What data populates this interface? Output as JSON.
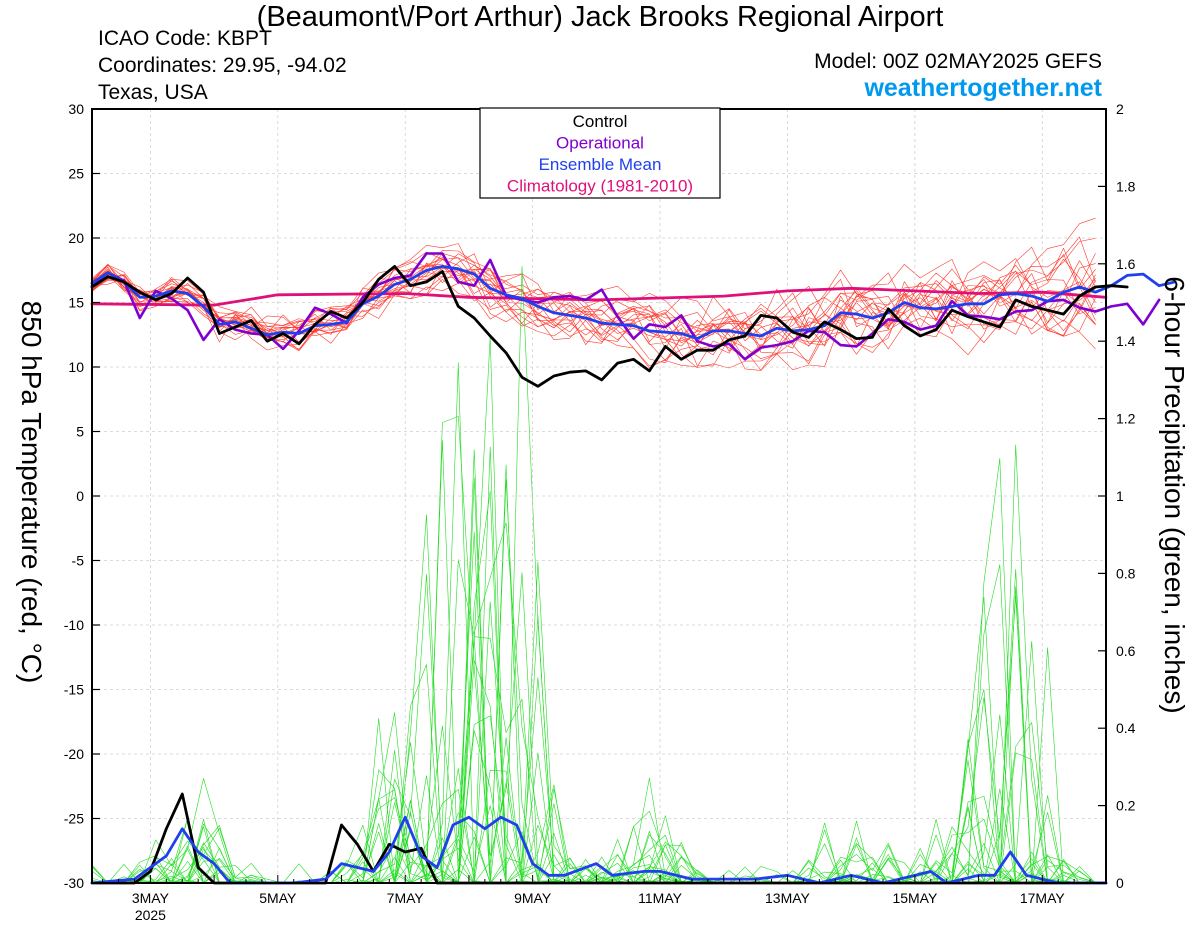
{
  "header": {
    "title": "(Beaumont\\/Port Arthur) Jack Brooks Regional Airport",
    "icao": "ICAO Code: KBPT",
    "coords": "Coordinates: 29.95, -94.02",
    "region": "Texas, USA",
    "model": "Model: 00Z 02MAY2025 GEFS",
    "site": "weathertogether.net"
  },
  "chart_data": {
    "type": "line",
    "ylabel_left": "850 hPa Temperature (red, °C)",
    "ylabel_right": "6-hour Precipitation (green, inches)",
    "left_axis": {
      "min": -30,
      "max": 30,
      "ticks": [
        30,
        25,
        20,
        15,
        10,
        5,
        0,
        -5,
        -10,
        -15,
        -20,
        -25,
        -30
      ]
    },
    "right_axis": {
      "min": 0,
      "max": 2,
      "ticks": [
        2,
        1.8,
        1.6,
        1.4,
        1.2,
        1,
        0.8,
        0.6,
        0.4,
        0.2,
        0
      ]
    },
    "x_axis": {
      "start_day": 2.0833,
      "end_day": 18.0,
      "ticks": [
        {
          "day": 3,
          "label": "3MAY",
          "sub": "2025"
        },
        {
          "day": 5,
          "label": "5MAY",
          "sub": ""
        },
        {
          "day": 7,
          "label": "7MAY",
          "sub": ""
        },
        {
          "day": 9,
          "label": "9MAY",
          "sub": ""
        },
        {
          "day": 11,
          "label": "11MAY",
          "sub": ""
        },
        {
          "day": 13,
          "label": "13MAY",
          "sub": ""
        },
        {
          "day": 15,
          "label": "15MAY",
          "sub": ""
        },
        {
          "day": 17,
          "label": "17MAY",
          "sub": ""
        }
      ]
    },
    "legend": {
      "position": "top-center",
      "items": [
        {
          "label": "Control",
          "color": "#000000"
        },
        {
          "label": "Operational",
          "color": "#8000d0"
        },
        {
          "label": "Ensemble Mean",
          "color": "#2040ee"
        },
        {
          "label": "Climatology (1981-2010)",
          "color": "#e0107a"
        }
      ]
    },
    "temperature": {
      "step_days": 0.25,
      "control": [
        16.2,
        17,
        16.6,
        15.8,
        15.2,
        15.7,
        16.9,
        15.8,
        12.6,
        13.1,
        13.6,
        12,
        12.6,
        11.8,
        13.3,
        14.3,
        13.8,
        15,
        16.8,
        17.8,
        16.3,
        16.6,
        17.4,
        14.7,
        13.8,
        12.4,
        11.1,
        9.2,
        8.5,
        9.3,
        9.6,
        9.7,
        9,
        10.3,
        10.6,
        9.7,
        11.6,
        10.6,
        11.3,
        11.3,
        12.1,
        12.4,
        14,
        13.8,
        12.7,
        12.3,
        13.5,
        12.9,
        12.2,
        12.3,
        14.5,
        13.2,
        12.4,
        12.9,
        14.4,
        13.9,
        13.5,
        13.1,
        15.2,
        14.7,
        14.4,
        14.1,
        15.5,
        16.2,
        16.3,
        16.2
      ],
      "operational": [
        16.3,
        17.3,
        16.7,
        13.8,
        15.9,
        15.3,
        14.4,
        12.1,
        13.7,
        12.9,
        12.6,
        12.5,
        11.4,
        12.8,
        14.6,
        14.1,
        13.4,
        15.4,
        16.4,
        16.9,
        17.1,
        18.8,
        18.8,
        16.6,
        16.3,
        18.3,
        15.5,
        15.2,
        15,
        15.4,
        15.5,
        15.2,
        16,
        13.9,
        12.2,
        13.3,
        13.1,
        14,
        12,
        11.6,
        11.8,
        10.6,
        11.5,
        11.7,
        12,
        12.8,
        12.7,
        11.7,
        11.6,
        12.6,
        13.7,
        13.5,
        12.9,
        13.2,
        15.1,
        14,
        13.9,
        13.7,
        14.3,
        14.4,
        15.1,
        15.2,
        14.6,
        14.3,
        14.7,
        14.9,
        13.3,
        15.2
      ],
      "ensemble_mean": [
        16.5,
        17.3,
        16.6,
        15.4,
        15.5,
        15.9,
        15.7,
        14.7,
        13.3,
        13.5,
        13,
        12.5,
        12.7,
        12.6,
        13.2,
        13.3,
        13.5,
        14.9,
        15.5,
        16.4,
        16.8,
        17.5,
        17.8,
        17.6,
        17.2,
        16.1,
        15.6,
        15.3,
        14.7,
        14.2,
        14,
        13.8,
        13.4,
        13.3,
        13.2,
        12.8,
        12.7,
        12.6,
        12.2,
        12.8,
        12.8,
        12.6,
        12.4,
        13,
        12.8,
        12.9,
        13.2,
        14.2,
        14.1,
        13.8,
        14.2,
        15,
        14.6,
        14.5,
        14.7,
        14.9,
        14.9,
        15.6,
        15.7,
        15.5,
        15.1,
        15.8,
        16.2,
        15.8,
        16.3,
        17.1,
        17.2,
        16.3,
        16.6
      ]
    },
    "climatology": [
      {
        "day": 2.0833,
        "t": 14.9
      },
      {
        "day": 4.0,
        "t": 14.8
      },
      {
        "day": 5.0,
        "t": 15.6
      },
      {
        "day": 7.0,
        "t": 15.7
      },
      {
        "day": 8.0,
        "t": 15.4
      },
      {
        "day": 10.0,
        "t": 15.2
      },
      {
        "day": 12.0,
        "t": 15.5
      },
      {
        "day": 13.0,
        "t": 15.9
      },
      {
        "day": 14.0,
        "t": 16.1
      },
      {
        "day": 15.0,
        "t": 15.9
      },
      {
        "day": 16.0,
        "t": 15.7
      },
      {
        "day": 17.0,
        "t": 15.8
      },
      {
        "day": 18.0,
        "t": 15.4
      }
    ],
    "precipitation": {
      "control": [
        {
          "day": 2.0833,
          "p": 0
        },
        {
          "day": 2.75,
          "p": 0
        },
        {
          "day": 3.0,
          "p": 0.03
        },
        {
          "day": 3.25,
          "p": 0.14
        },
        {
          "day": 3.5,
          "p": 0.23
        },
        {
          "day": 3.75,
          "p": 0.04
        },
        {
          "day": 4.0,
          "p": 0
        },
        {
          "day": 5.75,
          "p": 0
        },
        {
          "day": 6.0,
          "p": 0.15
        },
        {
          "day": 6.25,
          "p": 0.1
        },
        {
          "day": 6.5,
          "p": 0.03
        },
        {
          "day": 6.75,
          "p": 0.1
        },
        {
          "day": 7.0,
          "p": 0.08
        },
        {
          "day": 7.25,
          "p": 0.09
        },
        {
          "day": 7.5,
          "p": 0
        },
        {
          "day": 18.0,
          "p": 0
        }
      ],
      "ensemble_mean": [
        {
          "day": 2.0833,
          "p": 0
        },
        {
          "day": 2.75,
          "p": 0.01
        },
        {
          "day": 3.0,
          "p": 0.04
        },
        {
          "day": 3.25,
          "p": 0.07
        },
        {
          "day": 3.5,
          "p": 0.14
        },
        {
          "day": 3.75,
          "p": 0.08
        },
        {
          "day": 4.0,
          "p": 0.05
        },
        {
          "day": 4.25,
          "p": 0
        },
        {
          "day": 5.25,
          "p": 0
        },
        {
          "day": 5.75,
          "p": 0.01
        },
        {
          "day": 6.0,
          "p": 0.05
        },
        {
          "day": 6.5,
          "p": 0.03
        },
        {
          "day": 6.75,
          "p": 0.08
        },
        {
          "day": 7.0,
          "p": 0.17
        },
        {
          "day": 7.25,
          "p": 0.07
        },
        {
          "day": 7.5,
          "p": 0.04
        },
        {
          "day": 7.75,
          "p": 0.15
        },
        {
          "day": 8.0,
          "p": 0.17
        },
        {
          "day": 8.25,
          "p": 0.14
        },
        {
          "day": 8.5,
          "p": 0.17
        },
        {
          "day": 8.75,
          "p": 0.15
        },
        {
          "day": 9.0,
          "p": 0.05
        },
        {
          "day": 9.25,
          "p": 0.02
        },
        {
          "day": 9.5,
          "p": 0.02
        },
        {
          "day": 10.0,
          "p": 0.05
        },
        {
          "day": 10.25,
          "p": 0.02
        },
        {
          "day": 10.75,
          "p": 0.03
        },
        {
          "day": 11.0,
          "p": 0.03
        },
        {
          "day": 11.5,
          "p": 0.01
        },
        {
          "day": 12.5,
          "p": 0.01
        },
        {
          "day": 13.0,
          "p": 0.02
        },
        {
          "day": 13.5,
          "p": 0
        },
        {
          "day": 14.0,
          "p": 0.02
        },
        {
          "day": 14.5,
          "p": 0
        },
        {
          "day": 15.0,
          "p": 0.02
        },
        {
          "day": 15.25,
          "p": 0.03
        },
        {
          "day": 15.5,
          "p": 0
        },
        {
          "day": 16.0,
          "p": 0.02
        },
        {
          "day": 16.25,
          "p": 0.02
        },
        {
          "day": 16.5,
          "p": 0.08
        },
        {
          "day": 16.75,
          "p": 0.02
        },
        {
          "day": 17.25,
          "p": 0
        },
        {
          "day": 18.0,
          "p": 0
        }
      ]
    }
  }
}
